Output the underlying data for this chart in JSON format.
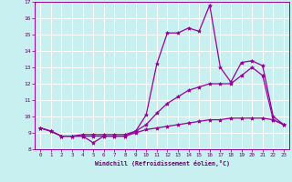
{
  "xlabel": "Windchill (Refroidissement éolien,°C)",
  "bg_color": "#c8f0f0",
  "line_color": "#990099",
  "grid_color": "#ffffff",
  "text_color": "#660066",
  "xlim": [
    -0.5,
    23.5
  ],
  "ylim": [
    8,
    17
  ],
  "xticks": [
    0,
    1,
    2,
    3,
    4,
    5,
    6,
    7,
    8,
    9,
    10,
    11,
    12,
    13,
    14,
    15,
    16,
    17,
    18,
    19,
    20,
    21,
    22,
    23
  ],
  "yticks": [
    8,
    9,
    10,
    11,
    12,
    13,
    14,
    15,
    16,
    17
  ],
  "series": [
    [
      9.3,
      9.1,
      8.8,
      8.8,
      8.8,
      8.4,
      8.8,
      8.8,
      8.8,
      9.1,
      10.1,
      13.2,
      15.1,
      15.1,
      15.4,
      15.2,
      16.8,
      13.0,
      12.1,
      13.3,
      13.4,
      13.1,
      10.0,
      9.5
    ],
    [
      9.3,
      9.1,
      8.8,
      8.8,
      8.9,
      8.9,
      8.9,
      8.9,
      8.9,
      9.1,
      9.5,
      10.2,
      10.8,
      11.2,
      11.6,
      11.8,
      12.0,
      12.0,
      12.0,
      12.5,
      13.0,
      12.5,
      9.8,
      9.5
    ],
    [
      9.3,
      9.1,
      8.8,
      8.8,
      8.8,
      8.8,
      8.8,
      8.8,
      8.8,
      9.0,
      9.2,
      9.3,
      9.4,
      9.5,
      9.6,
      9.7,
      9.8,
      9.8,
      9.9,
      9.9,
      9.9,
      9.9,
      9.8,
      9.5
    ]
  ]
}
